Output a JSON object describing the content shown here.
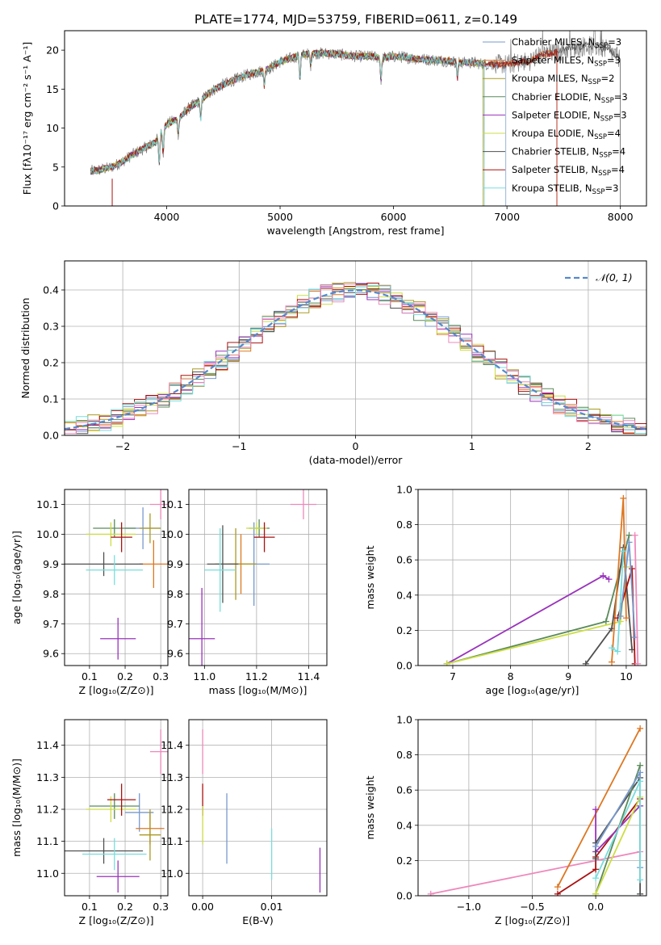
{
  "figure_title": "PLATE=1774, MJD=53759, FIBERID=0611, z=0.149",
  "colors": {
    "chab_miles": "#7799cc",
    "salp_miles": "#dd7722",
    "krou_miles": "#aa9922",
    "chab_elodie": "#5a8a5a",
    "salp_elodie": "#9933bb",
    "krou_elodie": "#ccdd44",
    "chab_stelib": "#505050",
    "salp_stelib": "#aa1111",
    "krou_stelib": "#77dddd",
    "pink": "#ee88bb",
    "normal": "#5588cc",
    "data": "#808080"
  },
  "chart_data": [
    {
      "type": "line",
      "title": "PLATE=1774, MJD=53759, FIBERID=0611, z=0.149",
      "xlabel": "wavelength [Angstrom, rest frame]",
      "ylabel": "Flux [fλ10⁻¹⁷ erg cm⁻² s⁻¹ A⁻¹]",
      "xlim": [
        3100,
        8230
      ],
      "ylim": [
        0,
        22.5
      ],
      "xticks": [
        4000,
        5000,
        6000,
        7000,
        8000
      ],
      "yticks": [
        0,
        5,
        10,
        15,
        20
      ],
      "grid": false,
      "legend_position": "top-right",
      "continuum": {
        "x": [
          3300,
          3400,
          3500,
          3600,
          3700,
          3800,
          3900,
          4000,
          4100,
          4200,
          4300,
          4400,
          4500,
          4600,
          4700,
          4800,
          4900,
          5000,
          5100,
          5200,
          5300,
          5400,
          5500,
          5600,
          5700,
          5800,
          5900,
          6000,
          6100,
          6200,
          6300,
          6400,
          6500,
          6600,
          6700,
          6800,
          6900,
          7000,
          7100,
          7200,
          7300,
          7400,
          7500,
          7600,
          7700,
          7800,
          7900,
          8000
        ],
        "y": [
          4.4,
          4.6,
          4.9,
          5.6,
          6.6,
          7.4,
          8.2,
          10.5,
          11.2,
          12.6,
          13.6,
          14.8,
          15.6,
          16.2,
          16.8,
          17.2,
          17.6,
          18.5,
          19.0,
          19.4,
          19.6,
          19.6,
          19.5,
          19.3,
          19.2,
          19.2,
          19.0,
          19.2,
          19.1,
          18.9,
          18.8,
          18.7,
          18.6,
          18.4,
          18.4,
          18.2,
          18.2,
          18.2,
          18.4,
          18.6,
          19.4,
          19.6,
          20.0,
          20.3,
          20.6,
          20.4,
          20.0,
          18.8
        ]
      },
      "series": [
        {
          "name": "Chabrier MILES, N_SSP=3",
          "label_base": "Chabrier MILES, N",
          "label_sub": "SSP",
          "label_tail": "=3",
          "color_key": "chab_miles",
          "xmax": 6990
        },
        {
          "name": "Salpeter MILES, N_SSP=3",
          "label_base": "Salpeter MILES, N",
          "label_sub": "SSP",
          "label_tail": "=3",
          "color_key": "salp_miles",
          "xmax": 7440
        },
        {
          "name": "Kroupa MILES, N_SSP=2",
          "label_base": "Kroupa MILES, N",
          "label_sub": "SSP",
          "label_tail": "=2",
          "color_key": "krou_miles",
          "xmax": 6790
        },
        {
          "name": "Chabrier ELODIE, N_SSP=3",
          "label_base": "Chabrier ELODIE, N",
          "label_sub": "SSP",
          "label_tail": "=3",
          "color_key": "chab_elodie",
          "xmax": 6800
        },
        {
          "name": "Salpeter ELODIE, N_SSP=3",
          "label_base": "Salpeter ELODIE, N",
          "label_sub": "SSP",
          "label_tail": "=3",
          "color_key": "salp_elodie",
          "xmax": 6800
        },
        {
          "name": "Kroupa ELODIE, N_SSP=4",
          "label_base": "Kroupa ELODIE, N",
          "label_sub": "SSP",
          "label_tail": "=4",
          "color_key": "krou_elodie",
          "xmax": 6800
        },
        {
          "name": "Chabrier STELIB, N_SSP=4",
          "label_base": "Chabrier STELIB, N",
          "label_sub": "SSP",
          "label_tail": "=4",
          "color_key": "chab_stelib",
          "xmax": 8000
        },
        {
          "name": "Salpeter STELIB, N_SSP=4",
          "label_base": "Salpeter STELIB, N",
          "label_sub": "SSP",
          "label_tail": "=4",
          "color_key": "salp_stelib",
          "xmax": 7440
        },
        {
          "name": "Kroupa STELIB, N_SSP=3",
          "label_base": "Kroupa STELIB, N",
          "label_sub": "SSP",
          "label_tail": "=3",
          "color_key": "krou_stelib",
          "xmax": 6800
        }
      ]
    },
    {
      "type": "line",
      "xlabel": "(data-model)/error",
      "ylabel": "Normed distribution",
      "xlim": [
        -2.5,
        2.5
      ],
      "ylim": [
        0,
        0.48
      ],
      "xticks": [
        -2,
        -1,
        0,
        1,
        2
      ],
      "xtick_labels": [
        "−2",
        "−1",
        "0",
        "1",
        "2"
      ],
      "yticks": [
        0.0,
        0.1,
        0.2,
        0.3,
        0.4
      ],
      "ytick_labels": [
        "0.0",
        "0.1",
        "0.2",
        "0.3",
        "0.4"
      ],
      "grid": true,
      "legend_position": "top-right",
      "legend": "𝒩(0, 1)",
      "normal_curve": {
        "mean": 0,
        "sigma": 1,
        "style": "dashed",
        "color_key": "normal"
      },
      "histograms": {
        "bin_width": 0.1,
        "x_start": -2.5,
        "color_keys": [
          "chab_miles",
          "salp_miles",
          "krou_miles",
          "chab_elodie",
          "salp_elodie",
          "krou_elodie",
          "chab_stelib",
          "salp_stelib",
          "krou_stelib",
          "pink"
        ]
      }
    },
    {
      "type": "scatter",
      "xlabel": "Z [log₁₀(Z/Z⊙)]",
      "ylabel": "age  [log₁₀(age/yr)]",
      "xlim": [
        0.03,
        0.32
      ],
      "ylim": [
        9.56,
        10.15
      ],
      "xticks": [
        0.1,
        0.2,
        0.3
      ],
      "xtick_labels": [
        "0.1",
        "0.2",
        "0.3"
      ],
      "yticks": [
        9.6,
        9.7,
        9.8,
        9.9,
        10.0,
        10.1
      ],
      "ytick_labels": [
        "9.6",
        "9.7",
        "9.8",
        "9.9",
        "10.0",
        "10.1"
      ],
      "grid": true,
      "points": [
        {
          "color_key": "pink",
          "x": 0.3,
          "xerr": 0.03,
          "y": 10.1,
          "yerr": 0.05
        },
        {
          "color_key": "chab_miles",
          "x": 0.25,
          "xerr": 0.05,
          "y": 10.02,
          "yerr": 0.07
        },
        {
          "color_key": "salp_miles",
          "x": 0.28,
          "xerr": 0.04,
          "y": 9.9,
          "yerr": 0.08
        },
        {
          "color_key": "krou_miles",
          "x": 0.27,
          "xerr": 0.03,
          "y": 10.02,
          "yerr": 0.05
        },
        {
          "color_key": "chab_elodie",
          "x": 0.17,
          "xerr": 0.06,
          "y": 10.02,
          "yerr": 0.03
        },
        {
          "color_key": "salp_elodie",
          "x": 0.18,
          "xerr": 0.05,
          "y": 9.65,
          "yerr": 0.07
        },
        {
          "color_key": "krou_elodie",
          "x": 0.16,
          "xerr": 0.07,
          "y": 10.0,
          "yerr": 0.04
        },
        {
          "color_key": "chab_stelib",
          "x": 0.14,
          "xerr": 0.11,
          "y": 9.9,
          "yerr": 0.04
        },
        {
          "color_key": "salp_stelib",
          "x": 0.19,
          "xerr": 0.03,
          "y": 9.99,
          "yerr": 0.05
        },
        {
          "color_key": "krou_stelib",
          "x": 0.17,
          "xerr": 0.08,
          "y": 9.88,
          "yerr": 0.05
        }
      ]
    },
    {
      "type": "scatter",
      "xlabel": "mass [log₁₀(M/M⊙)]",
      "xlim": [
        10.94,
        11.47
      ],
      "ylim": [
        9.56,
        10.15
      ],
      "xticks": [
        11.0,
        11.2,
        11.4
      ],
      "xtick_labels": [
        "11.0",
        "11.2",
        "11.4"
      ],
      "yticks": [
        9.6,
        9.7,
        9.8,
        9.9,
        10.0,
        10.1
      ],
      "ytick_labels": [
        "9.6",
        "9.7",
        "9.8",
        "9.9",
        "10.0",
        "10.1"
      ],
      "grid": true,
      "points": [
        {
          "color_key": "pink",
          "x": 11.38,
          "xerr": 0.05,
          "y": 10.1,
          "yerr": 0.05
        },
        {
          "color_key": "chab_miles",
          "x": 11.19,
          "xerr": 0.06,
          "y": 9.9,
          "yerr": 0.14
        },
        {
          "color_key": "salp_miles",
          "x": 11.14,
          "xerr": 0.05,
          "y": 9.9,
          "yerr": 0.1
        },
        {
          "color_key": "krou_miles",
          "x": 11.12,
          "xerr": 0.08,
          "y": 9.9,
          "yerr": 0.12
        },
        {
          "color_key": "chab_elodie",
          "x": 11.21,
          "xerr": 0.04,
          "y": 10.02,
          "yerr": 0.03
        },
        {
          "color_key": "salp_elodie",
          "x": 10.99,
          "xerr": 0.05,
          "y": 9.65,
          "yerr": 0.17
        },
        {
          "color_key": "krou_elodie",
          "x": 11.2,
          "xerr": 0.04,
          "y": 10.02,
          "yerr": 0.02
        },
        {
          "color_key": "chab_stelib",
          "x": 11.07,
          "xerr": 0.06,
          "y": 9.9,
          "yerr": 0.13
        },
        {
          "color_key": "salp_stelib",
          "x": 11.23,
          "xerr": 0.04,
          "y": 9.99,
          "yerr": 0.05
        },
        {
          "color_key": "krou_stelib",
          "x": 11.06,
          "xerr": 0.06,
          "y": 9.88,
          "yerr": 0.14
        }
      ]
    },
    {
      "type": "line",
      "xlabel": "age  [log₁₀(age/yr)]",
      "ylabel": "mass weight",
      "xlim": [
        6.4,
        10.35
      ],
      "ylim": [
        0,
        1.0
      ],
      "xticks": [
        7,
        8,
        9,
        10
      ],
      "xtick_labels": [
        "7",
        "8",
        "9",
        "10"
      ],
      "yticks": [
        0.0,
        0.2,
        0.4,
        0.6,
        0.8,
        1.0
      ],
      "ytick_labels": [
        "0.0",
        "0.2",
        "0.4",
        "0.6",
        "0.8",
        "1.0"
      ],
      "grid": true,
      "lines": [
        {
          "color_key": "salp_elodie",
          "x": [
            6.9,
            9.6,
            9.7
          ],
          "y": [
            0.01,
            0.51,
            0.49
          ]
        },
        {
          "color_key": "chab_elodie",
          "x": [
            6.9,
            9.65,
            10.05
          ],
          "y": [
            0.01,
            0.25,
            0.74
          ]
        },
        {
          "color_key": "krou_elodie",
          "x": [
            6.9,
            9.9,
            10.0
          ],
          "y": [
            0.01,
            0.25,
            0.56
          ]
        },
        {
          "color_key": "chab_stelib",
          "x": [
            9.3,
            9.75,
            9.95,
            10.1
          ],
          "y": [
            0.01,
            0.21,
            0.67,
            0.09
          ]
        },
        {
          "color_key": "salp_miles",
          "x": [
            9.75,
            9.95,
            10.0
          ],
          "y": [
            0.02,
            0.95,
            0.27
          ]
        },
        {
          "color_key": "salp_stelib",
          "x": [
            9.85,
            10.1,
            10.15
          ],
          "y": [
            0.27,
            0.55,
            0.01
          ]
        },
        {
          "color_key": "krou_stelib",
          "x": [
            9.75,
            9.85,
            9.95
          ],
          "y": [
            0.1,
            0.08,
            0.65
          ]
        },
        {
          "color_key": "chab_miles",
          "x": [
            9.9,
            10.05,
            10.15
          ],
          "y": [
            0.28,
            0.7,
            0.16
          ]
        },
        {
          "color_key": "pink",
          "x": [
            10.15,
            10.2
          ],
          "y": [
            0.74,
            0.01
          ]
        }
      ]
    },
    {
      "type": "scatter",
      "xlabel": "Z [log₁₀(Z/Z⊙)]",
      "ylabel": "mass [log₁₀(M/M⊙)]",
      "xlim": [
        0.03,
        0.32
      ],
      "ylim": [
        10.93,
        11.48
      ],
      "xticks": [
        0.1,
        0.2,
        0.3
      ],
      "xtick_labels": [
        "0.1",
        "0.2",
        "0.3"
      ],
      "yticks": [
        11.0,
        11.1,
        11.2,
        11.3,
        11.4
      ],
      "ytick_labels": [
        "11.0",
        "11.1",
        "11.2",
        "11.3",
        "11.4"
      ],
      "grid": true,
      "points": [
        {
          "color_key": "pink",
          "x": 0.3,
          "xerr": 0.03,
          "y": 11.38,
          "yerr": 0.07
        },
        {
          "color_key": "chab_miles",
          "x": 0.24,
          "xerr": 0.04,
          "y": 11.19,
          "yerr": 0.06
        },
        {
          "color_key": "salp_miles",
          "x": 0.27,
          "xerr": 0.04,
          "y": 11.14,
          "yerr": 0.05
        },
        {
          "color_key": "krou_miles",
          "x": 0.27,
          "xerr": 0.03,
          "y": 11.12,
          "yerr": 0.08
        },
        {
          "color_key": "chab_elodie",
          "x": 0.17,
          "xerr": 0.07,
          "y": 11.21,
          "yerr": 0.04
        },
        {
          "color_key": "salp_elodie",
          "x": 0.18,
          "xerr": 0.06,
          "y": 10.99,
          "yerr": 0.05
        },
        {
          "color_key": "krou_elodie",
          "x": 0.16,
          "xerr": 0.07,
          "y": 11.2,
          "yerr": 0.04
        },
        {
          "color_key": "chab_stelib",
          "x": 0.14,
          "xerr": 0.11,
          "y": 11.07,
          "yerr": 0.04
        },
        {
          "color_key": "salp_stelib",
          "x": 0.19,
          "xerr": 0.04,
          "y": 11.23,
          "yerr": 0.05
        },
        {
          "color_key": "krou_stelib",
          "x": 0.17,
          "xerr": 0.09,
          "y": 11.06,
          "yerr": 0.05
        }
      ]
    },
    {
      "type": "scatter",
      "xlabel": "E(B-V)",
      "xlim": [
        -0.002,
        0.018
      ],
      "ylim": [
        10.93,
        11.48
      ],
      "xticks": [
        0.0,
        0.01
      ],
      "xtick_labels": [
        "0.00",
        "0.01"
      ],
      "yticks": [
        11.0,
        11.1,
        11.2,
        11.3,
        11.4
      ],
      "ytick_labels": [
        "11.0",
        "11.1",
        "11.2",
        "11.3",
        "11.4"
      ],
      "grid": true,
      "points": [
        {
          "color_key": "pink",
          "x": 0.0,
          "xerr": 0,
          "y": 11.38,
          "yerr": 0.07
        },
        {
          "color_key": "salp_stelib",
          "x": 0.0,
          "xerr": 0,
          "y": 11.23,
          "yerr": 0.05
        },
        {
          "color_key": "krou_elodie",
          "x": 0.0,
          "xerr": 0,
          "y": 11.15,
          "yerr": 0.06
        },
        {
          "color_key": "chab_miles",
          "x": 0.0035,
          "xerr": 0,
          "y": 11.14,
          "yerr": 0.11
        },
        {
          "color_key": "krou_stelib",
          "x": 0.01,
          "xerr": 0,
          "y": 11.06,
          "yerr": 0.08
        },
        {
          "color_key": "salp_elodie",
          "x": 0.017,
          "xerr": 0,
          "y": 11.01,
          "yerr": 0.07
        }
      ]
    },
    {
      "type": "line",
      "xlabel": "Z [log₁₀(Z/Z⊙)]",
      "ylabel": "mass weight",
      "xlim": [
        -1.4,
        0.4
      ],
      "ylim": [
        0,
        1.0
      ],
      "xticks": [
        -1.0,
        -0.5,
        0.0
      ],
      "xtick_labels": [
        "−1.0",
        "−0.5",
        "0.0"
      ],
      "yticks": [
        0.0,
        0.2,
        0.4,
        0.6,
        0.8,
        1.0
      ],
      "ytick_labels": [
        "0.0",
        "0.2",
        "0.4",
        "0.6",
        "0.8",
        "1.0"
      ],
      "grid": true,
      "lines": [
        {
          "color_key": "pink",
          "x": [
            -1.3,
            0.35
          ],
          "y": [
            0.01,
            0.25
          ]
        },
        {
          "color_key": "salp_miles",
          "x": [
            -0.3,
            0.35
          ],
          "y": [
            0.05,
            0.95
          ]
        },
        {
          "color_key": "salp_stelib",
          "x": [
            -0.3,
            0.0,
            0.0,
            0.35
          ],
          "y": [
            0.01,
            0.15,
            0.22,
            0.55
          ]
        },
        {
          "color_key": "salp_elodie",
          "x": [
            0.0,
            0.0,
            0.35
          ],
          "y": [
            0.49,
            0.25,
            0.51
          ]
        },
        {
          "color_key": "chab_stelib",
          "x": [
            0.0,
            0.0,
            0.35,
            0.35
          ],
          "y": [
            0.21,
            0.3,
            0.67,
            0.01
          ]
        },
        {
          "color_key": "chab_elodie",
          "x": [
            0.0,
            0.35
          ],
          "y": [
            0.01,
            0.74
          ]
        },
        {
          "color_key": "krou_elodie",
          "x": [
            0.0,
            0.35
          ],
          "y": [
            0.01,
            0.56
          ]
        },
        {
          "color_key": "chab_miles",
          "x": [
            0.0,
            0.35,
            0.35
          ],
          "y": [
            0.28,
            0.7,
            0.16
          ]
        },
        {
          "color_key": "krou_stelib",
          "x": [
            0.0,
            0.35,
            0.35
          ],
          "y": [
            0.1,
            0.65,
            0.09
          ]
        }
      ]
    }
  ]
}
